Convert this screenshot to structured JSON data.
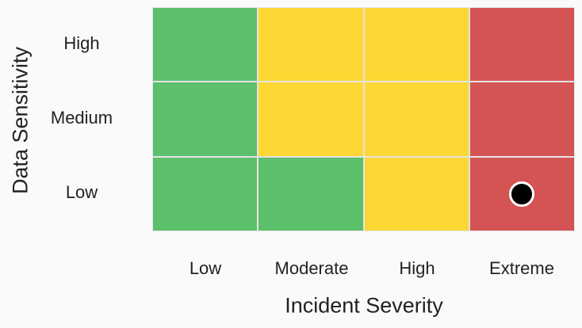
{
  "chart_data": {
    "type": "heatmap",
    "xlabel": "Incident Severity",
    "ylabel": "Data Sensitivity",
    "x_categories": [
      "Low",
      "Moderate",
      "High",
      "Extreme"
    ],
    "y_categories": [
      "High",
      "Medium",
      "Low"
    ],
    "levels": {
      "low": "#5bbf6c",
      "medium": "#fdd835",
      "high": "#d45353"
    },
    "cells": [
      [
        "low",
        "medium",
        "medium",
        "high"
      ],
      [
        "low",
        "medium",
        "medium",
        "high"
      ],
      [
        "low",
        "low",
        "medium",
        "high"
      ]
    ],
    "marker": {
      "x": "Extreme",
      "y": "Low"
    }
  }
}
